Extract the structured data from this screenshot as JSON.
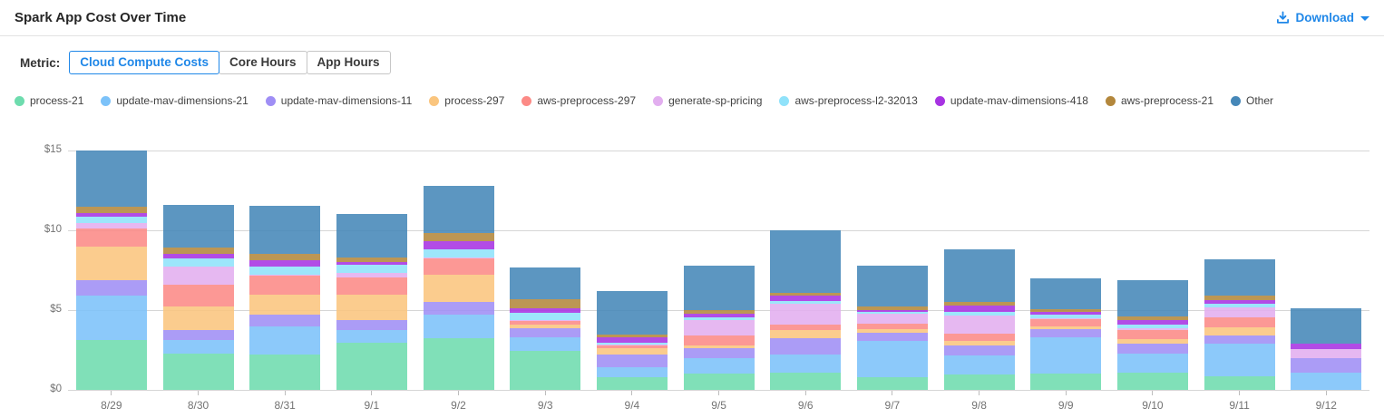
{
  "header": {
    "title": "Spark App Cost Over Time",
    "download_label": "Download"
  },
  "metric": {
    "label": "Metric:",
    "options": [
      "Cloud Compute Costs",
      "Core Hours",
      "App Hours"
    ],
    "selected": "Cloud Compute Costs"
  },
  "colors": {
    "accent_blue": "#1f87e8",
    "gridline": "#d6d6d6",
    "axis_text": "#737373"
  },
  "chart_data": {
    "type": "bar",
    "stacked": true,
    "title": "Spark App Cost Over Time",
    "xlabel": "",
    "ylabel": "",
    "ylim": [
      0,
      15
    ],
    "y_ticks": [
      "$0",
      "$5",
      "$10",
      "$15"
    ],
    "grid": true,
    "legend_position": "top",
    "categories": [
      "8/29",
      "8/30",
      "8/31",
      "9/1",
      "9/2",
      "9/3",
      "9/4",
      "9/5",
      "9/6",
      "9/7",
      "9/8",
      "9/9",
      "9/10",
      "9/11",
      "9/12"
    ],
    "series": [
      {
        "name": "process-21",
        "color": "#6edcae",
        "values": [
          3.1,
          2.25,
          2.2,
          2.95,
          3.25,
          2.45,
          0.8,
          1.05,
          1.1,
          0.8,
          0.95,
          1.05,
          1.1,
          0.85,
          0
        ]
      },
      {
        "name": "update-mav-dimensions-21",
        "color": "#7cc2f9",
        "values": [
          2.8,
          0.85,
          1.75,
          0.8,
          1.45,
          0.85,
          0.6,
          0.95,
          1.1,
          2.25,
          1.2,
          2.25,
          1.2,
          2.05,
          1.1
        ]
      },
      {
        "name": "update-mav-dimensions-11",
        "color": "#9f8ef5",
        "values": [
          1.0,
          0.65,
          0.75,
          0.65,
          0.8,
          0.55,
          0.8,
          0.6,
          1.05,
          0.55,
          0.65,
          0.5,
          0.6,
          0.5,
          0.9
        ]
      },
      {
        "name": "process-297",
        "color": "#fac57e",
        "values": [
          2.1,
          1.5,
          1.25,
          1.55,
          1.7,
          0.25,
          0.4,
          0.2,
          0.5,
          0.2,
          0.25,
          0.2,
          0.3,
          0.55,
          0
        ]
      },
      {
        "name": "aws-preprocess-297",
        "color": "#fc8a86",
        "values": [
          1.1,
          1.35,
          1.2,
          1.1,
          1.05,
          0.2,
          0.2,
          0.6,
          0.35,
          0.35,
          0.45,
          0.45,
          0.55,
          0.6,
          0
        ]
      },
      {
        "name": "generate-sp-pricing",
        "color": "#e2aeef",
        "values": [
          0.35,
          1.15,
          0.05,
          0.3,
          0.05,
          0.05,
          0.05,
          0.95,
          1.3,
          0.6,
          1.15,
          0.05,
          0.1,
          0.6,
          0.55
        ]
      },
      {
        "name": "aws-preprocess-l2-32013",
        "color": "#90e2fa",
        "values": [
          0.4,
          0.5,
          0.55,
          0.5,
          0.5,
          0.5,
          0.1,
          0.2,
          0.15,
          0.15,
          0.25,
          0.2,
          0.25,
          0.25,
          0
        ]
      },
      {
        "name": "update-mav-dimensions-418",
        "color": "#a733e2",
        "values": [
          0.25,
          0.3,
          0.4,
          0.15,
          0.5,
          0.25,
          0.35,
          0.2,
          0.35,
          0.1,
          0.4,
          0.2,
          0.3,
          0.25,
          0.35
        ]
      },
      {
        "name": "aws-preprocess-21",
        "color": "#b3873c",
        "values": [
          0.4,
          0.35,
          0.35,
          0.3,
          0.55,
          0.6,
          0.15,
          0.25,
          0.2,
          0.25,
          0.2,
          0.15,
          0.2,
          0.25,
          0
        ]
      },
      {
        "name": "Other",
        "color": "#4587b8",
        "values": [
          3.5,
          2.7,
          3.05,
          2.7,
          2.95,
          2.0,
          2.75,
          2.8,
          3.9,
          2.55,
          3.3,
          1.95,
          2.3,
          2.3,
          2.2
        ]
      }
    ]
  }
}
